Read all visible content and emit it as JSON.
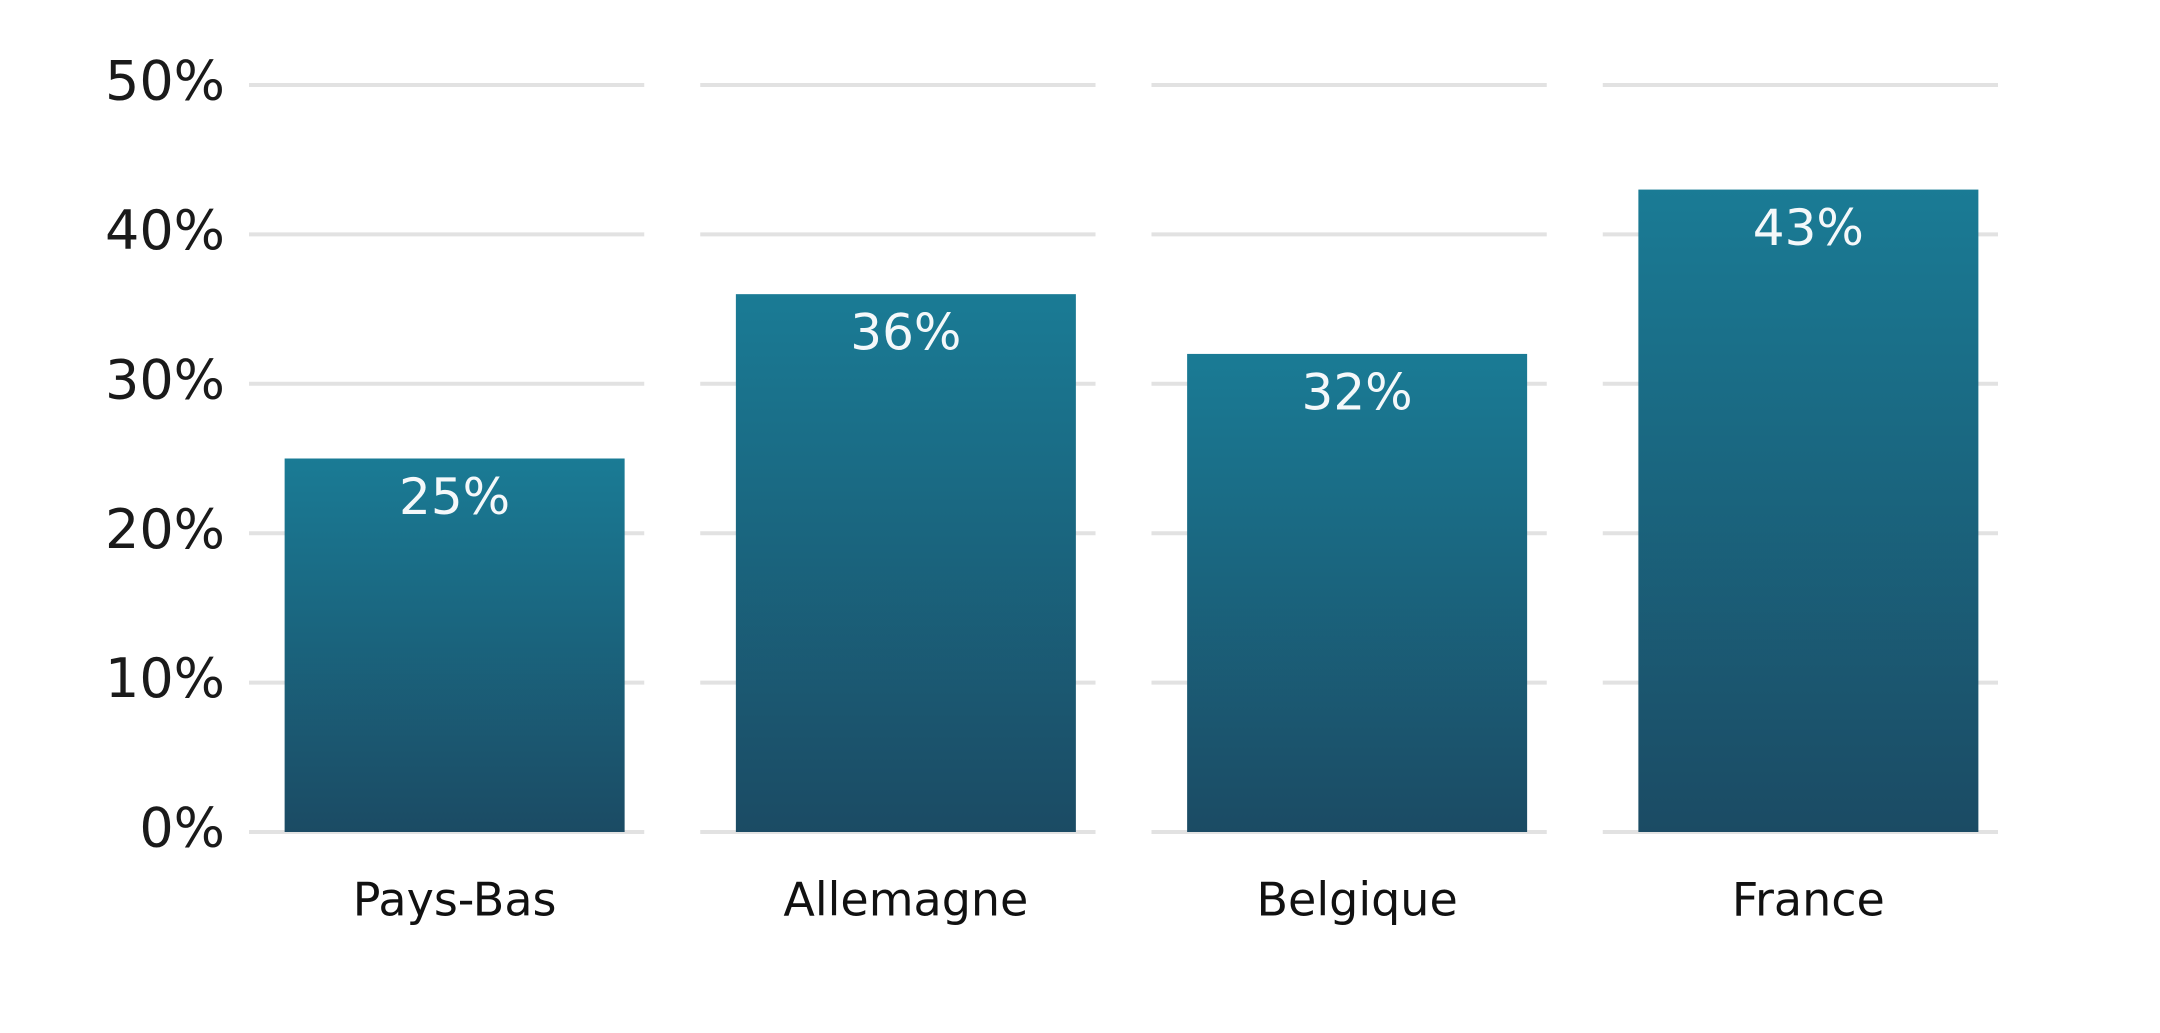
{
  "chart_data": {
    "type": "bar",
    "categories": [
      "Pays-Bas",
      "Allemagne",
      "Belgique",
      "France"
    ],
    "values": [
      25,
      36,
      32,
      43
    ],
    "value_labels": [
      "25%",
      "36%",
      "32%",
      "43%"
    ],
    "color": "#1a7b95",
    "ylim": [
      0,
      50
    ],
    "yticks": [
      {
        "value": 0,
        "label": "0%"
      },
      {
        "value": 10,
        "label": "10%"
      },
      {
        "value": 20,
        "label": "20%"
      },
      {
        "value": 30,
        "label": "30%"
      },
      {
        "value": 40,
        "label": "40%"
      },
      {
        "value": 50,
        "label": "50%"
      }
    ],
    "grid": true
  }
}
